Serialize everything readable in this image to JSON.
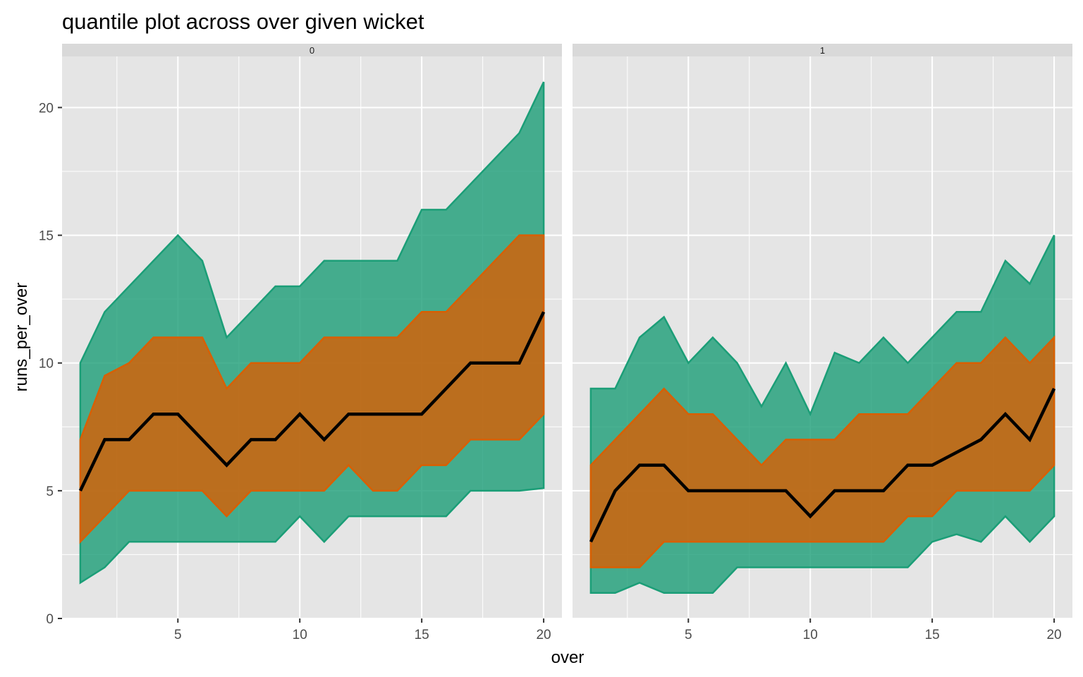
{
  "chart_data": {
    "type": "area",
    "title": "quantile plot across over given wicket",
    "xlabel": "over",
    "ylabel": "runs_per_over",
    "xlim": [
      0.25,
      20.75
    ],
    "ylim": [
      0,
      22
    ],
    "x_ticks": [
      5,
      10,
      15,
      20
    ],
    "y_ticks": [
      0,
      5,
      10,
      15,
      20
    ],
    "grid": true,
    "legend": "none",
    "colors": {
      "panel_bg": "#e5e5e5",
      "strip_bg": "#d9d9d9",
      "grid": "#ffffff",
      "outer_band": "#1b9e77",
      "inner_band": "#d95f02",
      "median_line": "#000000"
    },
    "facets": [
      {
        "label": "0",
        "x": [
          1,
          2,
          3,
          4,
          5,
          6,
          7,
          8,
          9,
          10,
          11,
          12,
          13,
          14,
          15,
          16,
          17,
          18,
          19,
          20
        ],
        "series": [
          {
            "quantile": "lower outer",
            "values": [
              1.4,
              2,
              3,
              3,
              3,
              3,
              3,
              3,
              3,
              4,
              3,
              4,
              4,
              4,
              4,
              4,
              5,
              5,
              5,
              5.1
            ]
          },
          {
            "quantile": "lower inner",
            "values": [
              3,
              4,
              5,
              5,
              5,
              5,
              4,
              5,
              5,
              5,
              5,
              6,
              5,
              5,
              6,
              6,
              7,
              7,
              7,
              8
            ]
          },
          {
            "quantile": "median",
            "values": [
              5,
              7,
              7,
              8,
              8,
              7,
              6,
              7,
              7,
              8,
              7,
              8,
              8,
              8,
              8,
              9,
              10,
              10,
              10,
              12
            ]
          },
          {
            "quantile": "upper inner",
            "values": [
              7,
              9.5,
              10,
              11,
              11,
              11,
              9,
              10,
              10,
              10,
              11,
              11,
              11,
              11,
              12,
              12,
              13,
              14,
              15,
              15
            ]
          },
          {
            "quantile": "upper outer",
            "values": [
              10,
              12,
              13,
              14,
              15,
              14,
              11,
              12,
              13,
              13,
              14,
              14,
              14,
              14,
              16,
              16,
              17,
              18,
              19,
              21
            ]
          }
        ]
      },
      {
        "label": "1",
        "x": [
          1,
          2,
          3,
          4,
          5,
          6,
          7,
          8,
          9,
          10,
          11,
          12,
          13,
          14,
          15,
          16,
          17,
          18,
          19,
          20
        ],
        "series": [
          {
            "quantile": "lower outer",
            "values": [
              1,
              1,
              1.4,
              1,
              1,
              1,
              2,
              2,
              2,
              2,
              2,
              2,
              2,
              2,
              3,
              3.3,
              3,
              4,
              3,
              4
            ]
          },
          {
            "quantile": "lower inner",
            "values": [
              2,
              2,
              2,
              3,
              3,
              3,
              3,
              3,
              3,
              3,
              3,
              3,
              3,
              4,
              4,
              5,
              5,
              5,
              5,
              6
            ]
          },
          {
            "quantile": "median",
            "values": [
              3,
              5,
              6,
              6,
              5,
              5,
              5,
              5,
              5,
              4,
              5,
              5,
              5,
              6,
              6,
              6.5,
              7,
              8,
              7,
              9
            ]
          },
          {
            "quantile": "upper inner",
            "values": [
              6,
              7,
              8,
              9,
              8,
              8,
              7,
              6,
              7,
              7,
              7,
              8,
              8,
              8,
              9,
              10,
              10,
              11,
              10,
              11
            ]
          },
          {
            "quantile": "upper outer",
            "values": [
              9,
              9,
              11,
              11.8,
              10,
              11,
              10,
              8.3,
              10,
              8,
              10.4,
              10,
              11,
              10,
              11,
              12,
              12,
              14,
              13.1,
              15
            ]
          }
        ]
      }
    ]
  }
}
